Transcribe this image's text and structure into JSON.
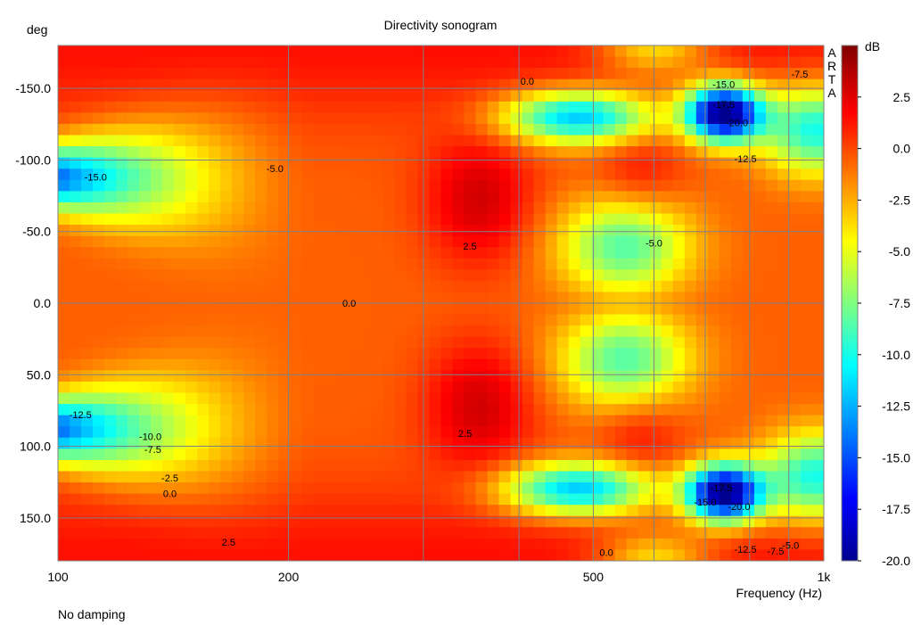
{
  "chart_data": {
    "type": "heatmap",
    "title": "Directivity sonogram",
    "xlabel": "Frequency (Hz)",
    "ylabel": "deg",
    "footer": "No damping",
    "watermark": "ARTA",
    "colorbar_label": "dB",
    "x_scale": "log",
    "xlim": [
      100,
      1000
    ],
    "ylim": [
      -180,
      180
    ],
    "zlim": [
      -20,
      5
    ],
    "x_ticks": [
      100,
      200,
      500,
      1000
    ],
    "x_tick_labels": [
      "100",
      "200",
      "500",
      "1k"
    ],
    "x_minor_grid": [
      300,
      400,
      600,
      700,
      800,
      900
    ],
    "y_ticks": [
      -150,
      -100,
      -50,
      0,
      50,
      100,
      150
    ],
    "y_tick_labels": [
      "-150.0",
      "-100.0",
      "-50.0",
      "0.0",
      "50.0",
      "100.0",
      "150.0"
    ],
    "colorbar_ticks": [
      2.5,
      0,
      -2.5,
      -5,
      -7.5,
      -10,
      -12.5,
      -15,
      -17.5,
      -20
    ],
    "colorbar_tick_labels": [
      "2.5",
      "0.0",
      "-2.5",
      "-5.0",
      "-7.5",
      "-10.0",
      "-12.5",
      "-15.0",
      "-17.5",
      "-20.0"
    ],
    "colormap": [
      "#00008f",
      "#0000ff",
      "#00ffff",
      "#ffff00",
      "#ff0000",
      "#800000"
    ],
    "grid": true,
    "contour_labels": [
      {
        "text": "0.0",
        "freq": 410,
        "deg": -155
      },
      {
        "text": "-15.0",
        "freq": 740,
        "deg": -153
      },
      {
        "text": "-7.5",
        "freq": 930,
        "deg": -160
      },
      {
        "text": "-17.5",
        "freq": 740,
        "deg": -139
      },
      {
        "text": "-20.0",
        "freq": 770,
        "deg": -126
      },
      {
        "text": "-12.5",
        "freq": 790,
        "deg": -101
      },
      {
        "text": "-15.0",
        "freq": 112,
        "deg": -88
      },
      {
        "text": "-5.0",
        "freq": 192,
        "deg": -94
      },
      {
        "text": "-5.0",
        "freq": 600,
        "deg": -42
      },
      {
        "text": "2.5",
        "freq": 345,
        "deg": -40
      },
      {
        "text": "0.0",
        "freq": 240,
        "deg": 0
      },
      {
        "text": "-12.5",
        "freq": 107,
        "deg": 78
      },
      {
        "text": "-10.0",
        "freq": 132,
        "deg": 93
      },
      {
        "text": "-7.5",
        "freq": 133,
        "deg": 102
      },
      {
        "text": "-2.5",
        "freq": 140,
        "deg": 122
      },
      {
        "text": "0.0",
        "freq": 140,
        "deg": 133
      },
      {
        "text": "2.5",
        "freq": 340,
        "deg": 91
      },
      {
        "text": "-17.5",
        "freq": 735,
        "deg": 129
      },
      {
        "text": "-15.0",
        "freq": 700,
        "deg": 139
      },
      {
        "text": "-20.0",
        "freq": 775,
        "deg": 142
      },
      {
        "text": "2.5",
        "freq": 167,
        "deg": 167
      },
      {
        "text": "0.0",
        "freq": 520,
        "deg": 174
      },
      {
        "text": "-12.5",
        "freq": 790,
        "deg": 172
      },
      {
        "text": "-7.5",
        "freq": 865,
        "deg": 173
      },
      {
        "text": "-5.0",
        "freq": 905,
        "deg": 169
      }
    ]
  }
}
